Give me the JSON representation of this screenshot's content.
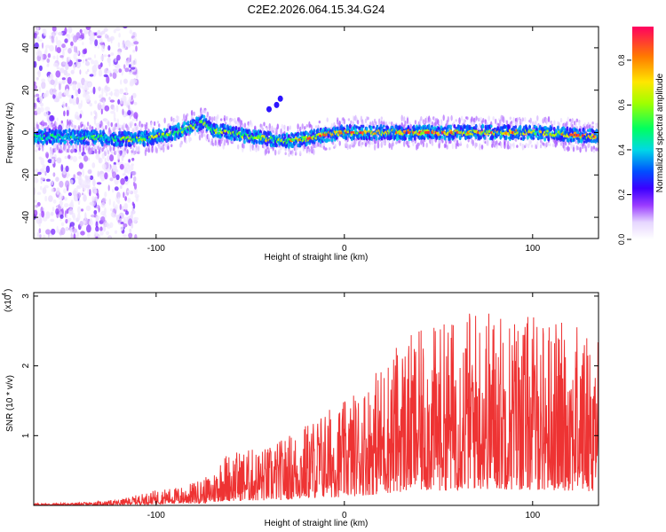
{
  "title": "C2E2.2026.064.15.34.G24",
  "chart_data": [
    {
      "type": "heatmap",
      "xlabel": "Height of straight line (km)",
      "ylabel": "Frequency (Hz)",
      "xlim": [
        -165,
        135
      ],
      "ylim": [
        -50,
        50
      ],
      "xticks": [
        -100,
        0,
        100
      ],
      "yticks": [
        -40,
        -20,
        0,
        20,
        40
      ],
      "ridge": [
        {
          "x": -160,
          "f": -2
        },
        {
          "x": -140,
          "f": -2
        },
        {
          "x": -120,
          "f": -3
        },
        {
          "x": -110,
          "f": -3
        },
        {
          "x": -100,
          "f": -2
        },
        {
          "x": -90,
          "f": 0
        },
        {
          "x": -80,
          "f": 3
        },
        {
          "x": -75,
          "f": 5
        },
        {
          "x": -70,
          "f": 1
        },
        {
          "x": -60,
          "f": 0
        },
        {
          "x": -50,
          "f": -2
        },
        {
          "x": -40,
          "f": -3
        },
        {
          "x": -35,
          "f": -4
        },
        {
          "x": -30,
          "f": -4
        },
        {
          "x": -20,
          "f": -3
        },
        {
          "x": -10,
          "f": -1
        },
        {
          "x": 0,
          "f": 0
        },
        {
          "x": 20,
          "f": 0
        },
        {
          "x": 50,
          "f": 0
        },
        {
          "x": 80,
          "f": 0
        },
        {
          "x": 100,
          "f": 0
        },
        {
          "x": 120,
          "f": -1
        },
        {
          "x": 135,
          "f": -2
        }
      ],
      "isolated_points": [
        {
          "x": -40,
          "f": 11
        },
        {
          "x": -36,
          "f": 13
        },
        {
          "x": -34,
          "f": 16
        }
      ],
      "colorbar": {
        "label": "Normalized spectral amplitude",
        "range": [
          0,
          0.95
        ],
        "ticks": [
          "0.0",
          "0.2",
          "0.4",
          "0.6",
          "0.8"
        ]
      }
    },
    {
      "type": "line",
      "xlabel": "Height of straight line (km)",
      "ylabel": "SNR (10 * v/v)",
      "y_scale_label": "(x10",
      "y_scale_exponent": "4",
      "xlim": [
        -165,
        135
      ],
      "ylim": [
        0,
        3.05
      ],
      "xticks": [
        -100,
        0,
        100
      ],
      "yticks": [
        1,
        2,
        3
      ],
      "color": "#ee3333",
      "envelope": [
        {
          "x": -165,
          "peak": 0.03
        },
        {
          "x": -140,
          "peak": 0.04
        },
        {
          "x": -120,
          "peak": 0.08
        },
        {
          "x": -100,
          "peak": 0.22
        },
        {
          "x": -85,
          "peak": 0.28
        },
        {
          "x": -70,
          "peak": 0.45
        },
        {
          "x": -65,
          "peak": 0.75
        },
        {
          "x": -55,
          "peak": 0.8
        },
        {
          "x": -40,
          "peak": 0.85
        },
        {
          "x": -25,
          "peak": 1.1
        },
        {
          "x": -10,
          "peak": 1.4
        },
        {
          "x": 0,
          "peak": 1.5
        },
        {
          "x": 15,
          "peak": 1.9
        },
        {
          "x": 30,
          "peak": 2.4
        },
        {
          "x": 50,
          "peak": 2.6
        },
        {
          "x": 70,
          "peak": 2.9
        },
        {
          "x": 90,
          "peak": 2.8
        },
        {
          "x": 110,
          "peak": 2.7
        },
        {
          "x": 135,
          "peak": 2.5
        }
      ]
    }
  ]
}
